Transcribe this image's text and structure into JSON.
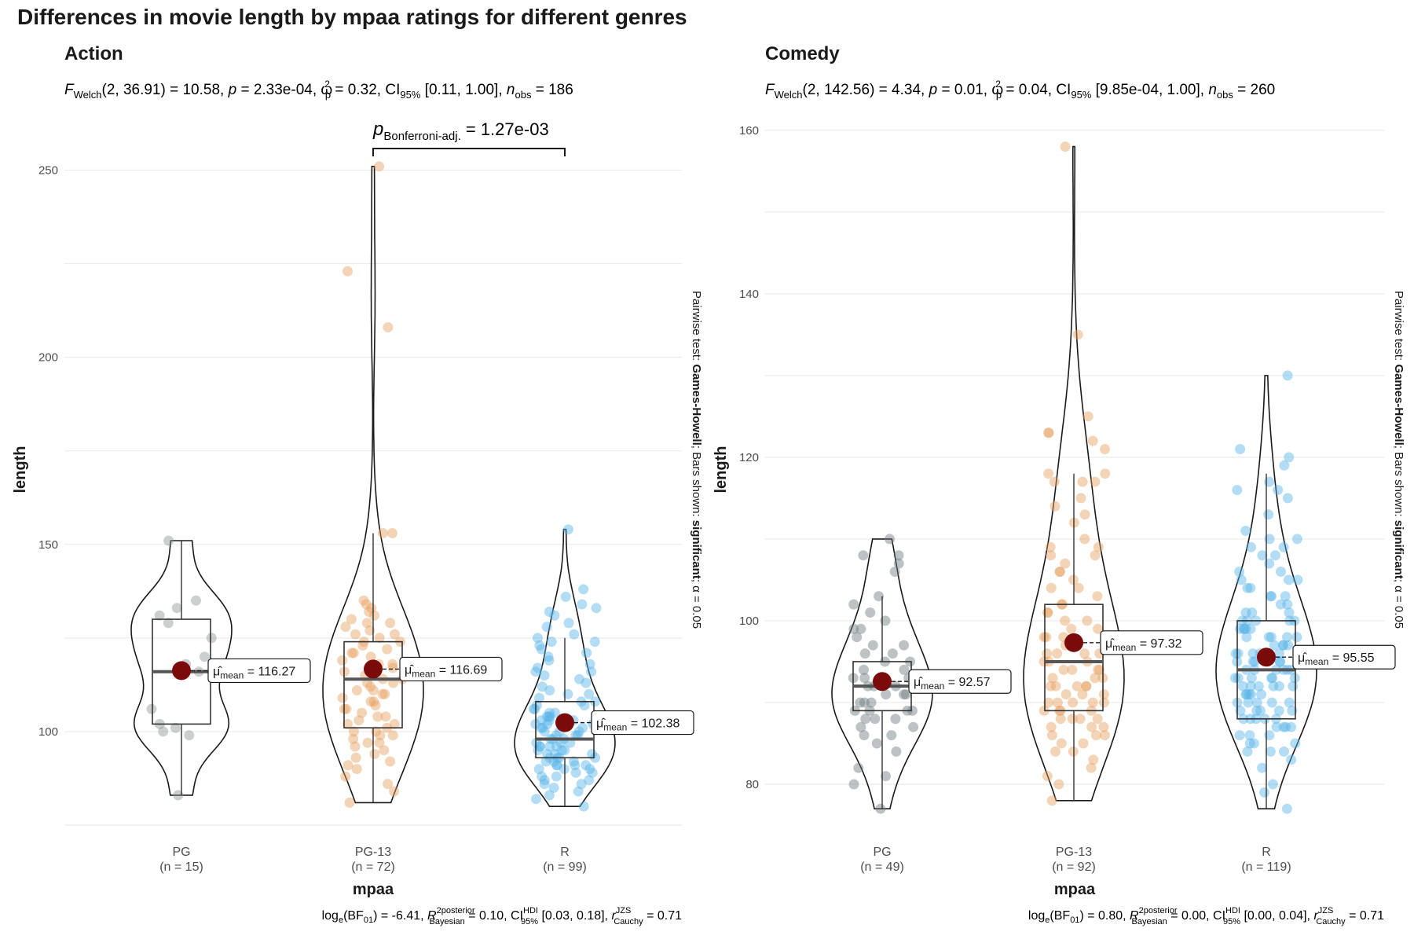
{
  "title": "Differences in movie length by mpaa ratings for different genres",
  "chart_data": [
    {
      "type": "violin-box",
      "facet": "Action",
      "subtitle": {
        "pre": "F",
        "pre_sub": "Welch",
        "df": "(2, 36.91) = 10.58, ",
        "p": "p",
        "p_val": " = 2.33e-04, ",
        "omega": "ω",
        "omega_sub": "p",
        "omega_sup": "2",
        "omega_val": " = 0.32, CI",
        "ci_sub": "95%",
        "ci_val": " [0.11, 1.00], ",
        "n": "n",
        "n_sub": "obs",
        "n_val": " = 186"
      },
      "caption": {
        "a": "log",
        "a_sub": "e",
        "b": "(BF",
        "b_sub": "01",
        "c": ") = -6.41, ",
        "r": "R",
        "r_sup": "2",
        "r_sup2": "posterior",
        "r_sub": "Bayesian",
        "d": " = 0.10, CI",
        "ci_sup": "HDI",
        "ci_sub": "95%",
        "e": " [0.03, 0.18], ",
        "rc": "r",
        "rc_sup": "JZS",
        "rc_sub": "Cauchy",
        "f": " = 0.71"
      },
      "xlabel": "mpaa",
      "ylabel": "length",
      "ylim": [
        75,
        265
      ],
      "yticks": [
        100,
        150,
        200,
        250
      ],
      "categories": [
        "PG",
        "PG-13",
        "R"
      ],
      "counts": [
        "(n = 15)",
        "(n = 72)",
        "(n = 99)"
      ],
      "colors": [
        "#8c9596",
        "#e69f5f",
        "#56b4e9"
      ],
      "means": [
        116.27,
        116.69,
        102.38
      ],
      "mean_labels": [
        "116.27",
        "116.69",
        "102.38"
      ],
      "box": [
        {
          "q1": 102,
          "median": 116,
          "q3": 130,
          "min": 83,
          "max": 151
        },
        {
          "q1": 101,
          "median": 114,
          "q3": 124,
          "min": 81,
          "max": 153
        },
        {
          "q1": 93,
          "median": 98,
          "q3": 108,
          "min": 80,
          "max": 125
        }
      ],
      "violin_range": [
        [
          83,
          151
        ],
        [
          81,
          251
        ],
        [
          80,
          154
        ]
      ],
      "points": [
        [
          83,
          99,
          100,
          101,
          102,
          106,
          116,
          118,
          120,
          125,
          129,
          131,
          133,
          135,
          151
        ],
        [
          81,
          84,
          86,
          88,
          90,
          91,
          92,
          93,
          94,
          95,
          96,
          97,
          98,
          99,
          100,
          101,
          102,
          103,
          104,
          105,
          106,
          107,
          108,
          109,
          110,
          110,
          111,
          112,
          113,
          114,
          115,
          116,
          117,
          118,
          119,
          120,
          121,
          122,
          123,
          124,
          125,
          126,
          127,
          128,
          129,
          130,
          131,
          132,
          133,
          134,
          135,
          99,
          102,
          104,
          97,
          106,
          108,
          111,
          114,
          118,
          121,
          124,
          126,
          129,
          100,
          113,
          116,
          153,
          153,
          208,
          223,
          251
        ],
        [
          80,
          82,
          83,
          84,
          85,
          86,
          86,
          87,
          87,
          88,
          88,
          89,
          89,
          90,
          90,
          90,
          91,
          91,
          91,
          92,
          92,
          92,
          93,
          93,
          93,
          94,
          94,
          94,
          95,
          95,
          95,
          96,
          96,
          96,
          97,
          97,
          97,
          98,
          98,
          98,
          99,
          99,
          99,
          100,
          100,
          100,
          101,
          101,
          101,
          102,
          102,
          102,
          103,
          103,
          103,
          104,
          104,
          104,
          105,
          105,
          106,
          106,
          107,
          107,
          108,
          108,
          109,
          110,
          110,
          111,
          112,
          113,
          114,
          115,
          116,
          116,
          117,
          118,
          119,
          120,
          121,
          122,
          123,
          124,
          124,
          125,
          126,
          128,
          129,
          131,
          132,
          133,
          134,
          136,
          138,
          91,
          93,
          96,
          154
        ]
      ],
      "pairwise": {
        "from": 1,
        "to": 2,
        "label_p": "p",
        "label_sub": "Bonferroni-adj.",
        "label_val": " = 1.27e-03"
      },
      "side_caption": {
        "a": "Pairwise test: ",
        "b": "Games-Howell",
        "c": "; Bars shown: ",
        "d": "significant",
        "e": "; α = 0.05"
      }
    },
    {
      "type": "violin-box",
      "facet": "Comedy",
      "subtitle": {
        "pre": "F",
        "pre_sub": "Welch",
        "df": "(2, 142.56) = 4.34, ",
        "p": "p",
        "p_val": " = 0.01, ",
        "omega": "ω",
        "omega_sub": "p",
        "omega_sup": "2",
        "omega_val": " = 0.04, CI",
        "ci_sub": "95%",
        "ci_val": " [9.85e-04, 1.00], ",
        "n": "n",
        "n_sub": "obs",
        "n_val": " = 260"
      },
      "caption": {
        "a": "log",
        "a_sub": "e",
        "b": "(BF",
        "b_sub": "01",
        "c": ") = 0.80, ",
        "r": "R",
        "r_sup": "2",
        "r_sup2": "posterior",
        "r_sub": "Bayesian",
        "d": " = 0.00, CI",
        "ci_sup": "HDI",
        "ci_sub": "95%",
        "e": " [0.00, 0.04], ",
        "rc": "r",
        "rc_sup": "JZS",
        "rc_sub": "Cauchy",
        "f": " = 0.71"
      },
      "xlabel": "mpaa",
      "ylabel": "length",
      "ylim": [
        75,
        162
      ],
      "yticks": [
        80,
        100,
        120,
        140,
        160
      ],
      "categories": [
        "PG",
        "PG-13",
        "R"
      ],
      "counts": [
        "(n = 49)",
        "(n = 92)",
        "(n = 119)"
      ],
      "colors": [
        "#6d7b7e",
        "#e69f5f",
        "#56b4e9"
      ],
      "means": [
        92.57,
        97.32,
        95.55
      ],
      "mean_labels": [
        "92.57",
        "97.32",
        "95.55"
      ],
      "box": [
        {
          "q1": 89,
          "median": 92,
          "q3": 95,
          "min": 77,
          "max": 103
        },
        {
          "q1": 89,
          "median": 95,
          "q3": 102,
          "min": 78,
          "max": 118
        },
        {
          "q1": 88,
          "median": 94,
          "q3": 100,
          "min": 77,
          "max": 118
        }
      ],
      "violin_range": [
        [
          77,
          110
        ],
        [
          78,
          158
        ],
        [
          77,
          130
        ]
      ],
      "points": [
        [
          77,
          80,
          81,
          82,
          84,
          85,
          86,
          86,
          87,
          87,
          88,
          88,
          88,
          89,
          89,
          89,
          89,
          90,
          90,
          90,
          91,
          91,
          91,
          92,
          92,
          92,
          93,
          93,
          93,
          94,
          94,
          95,
          95,
          96,
          97,
          97,
          98,
          99,
          99,
          100,
          101,
          102,
          103,
          106,
          107,
          108,
          108,
          110,
          96
        ],
        [
          78,
          80,
          81,
          82,
          83,
          84,
          84,
          85,
          85,
          86,
          86,
          87,
          87,
          87,
          88,
          88,
          88,
          89,
          89,
          89,
          90,
          90,
          90,
          90,
          91,
          91,
          91,
          92,
          92,
          92,
          92,
          93,
          93,
          93,
          94,
          94,
          94,
          95,
          95,
          95,
          96,
          96,
          96,
          97,
          97,
          97,
          98,
          98,
          99,
          99,
          100,
          100,
          101,
          101,
          102,
          102,
          103,
          104,
          104,
          105,
          106,
          106,
          107,
          108,
          108,
          109,
          109,
          110,
          112,
          113,
          114,
          115,
          117,
          117,
          117,
          118,
          118,
          121,
          122,
          123,
          123,
          125,
          135,
          158,
          88,
          90,
          92,
          94,
          96,
          98,
          86,
          89
        ],
        [
          77,
          79,
          80,
          82,
          83,
          84,
          84,
          85,
          85,
          86,
          86,
          86,
          87,
          87,
          87,
          88,
          88,
          88,
          88,
          89,
          89,
          89,
          89,
          90,
          90,
          90,
          90,
          91,
          91,
          91,
          91,
          92,
          92,
          92,
          92,
          93,
          93,
          93,
          93,
          94,
          94,
          94,
          94,
          95,
          95,
          95,
          95,
          96,
          96,
          96,
          96,
          97,
          97,
          97,
          98,
          98,
          98,
          99,
          99,
          99,
          100,
          100,
          100,
          101,
          101,
          102,
          102,
          103,
          103,
          104,
          104,
          105,
          105,
          106,
          106,
          107,
          108,
          108,
          109,
          109,
          110,
          110,
          111,
          113,
          115,
          116,
          116,
          117,
          119,
          120,
          121,
          130,
          88,
          90,
          92,
          93,
          94,
          95,
          96,
          97,
          98,
          99,
          100,
          91,
          89,
          87,
          85,
          84,
          99,
          101,
          103,
          105,
          92,
          94,
          96,
          98,
          100,
          93,
          95
        ]
      ],
      "pairwise": null,
      "side_caption": {
        "a": "Pairwise test: ",
        "b": "Games-Howell",
        "c": "; Bars shown: ",
        "d": "significant",
        "e": "; α = 0.05"
      }
    }
  ]
}
